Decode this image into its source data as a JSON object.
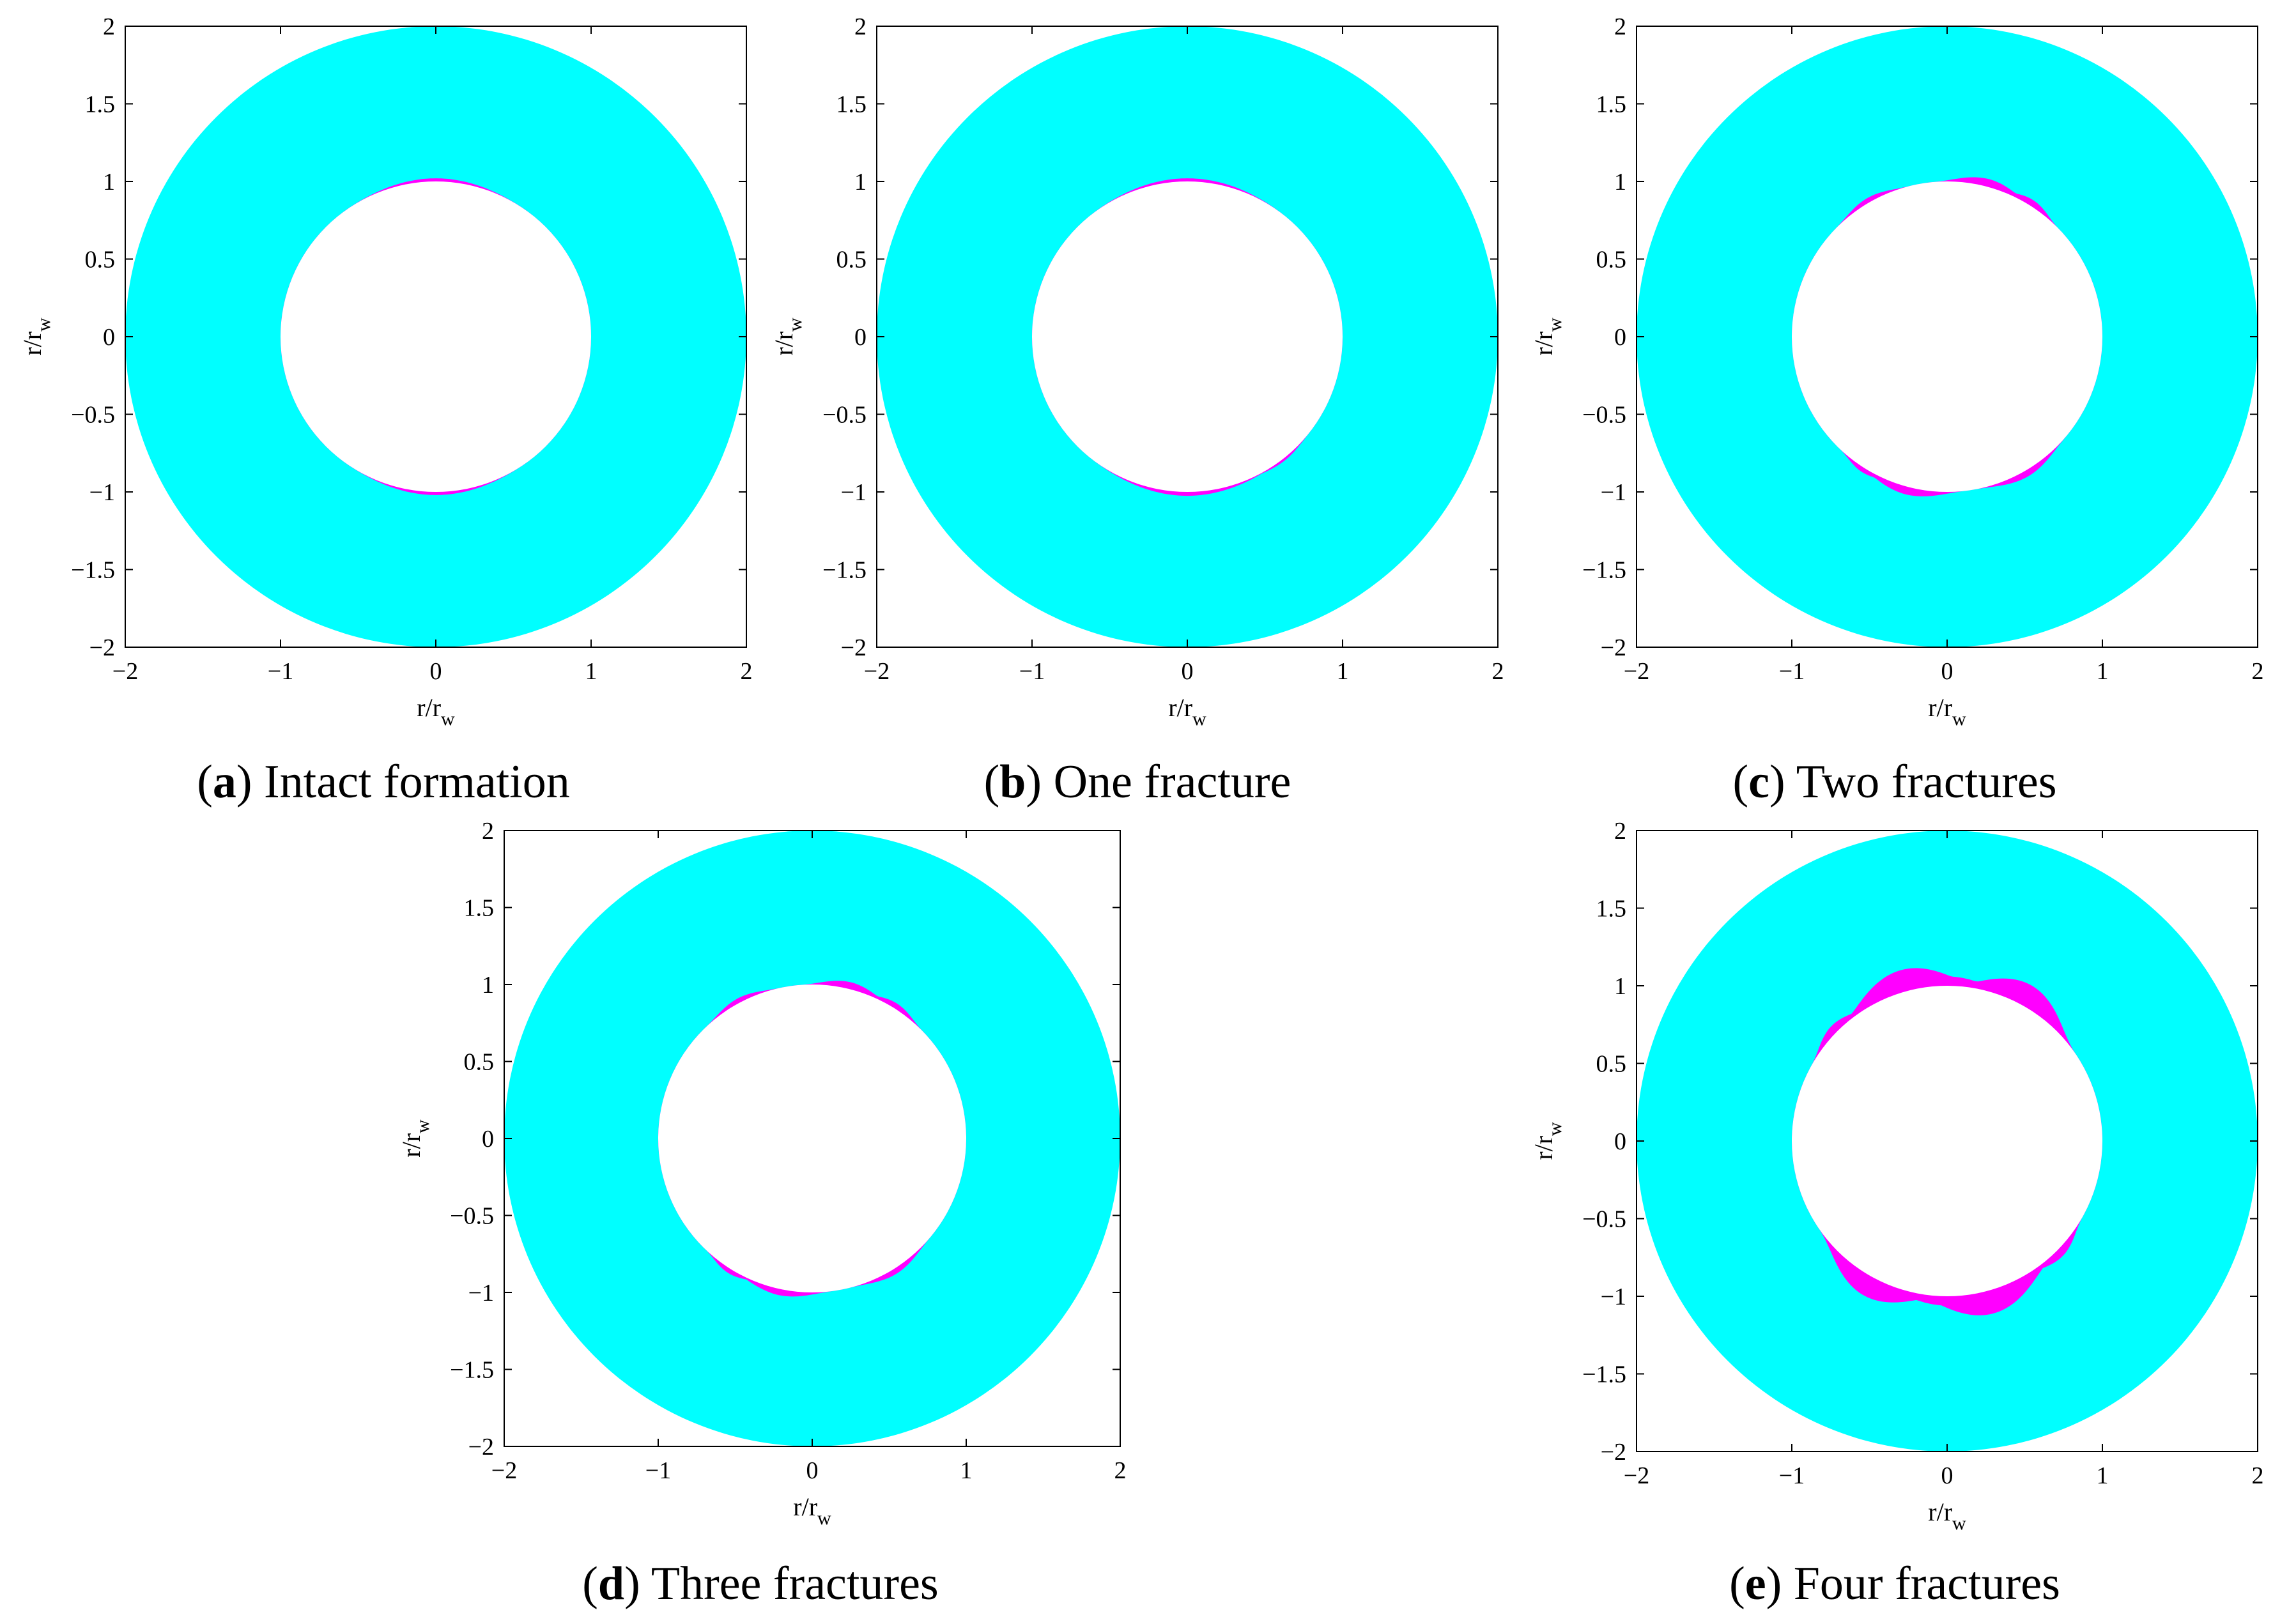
{
  "colors": {
    "annulus": "#00FFFF",
    "damage_zone": "#FF00FF",
    "wellbore": "#FFFFFF",
    "axis": "#000000"
  },
  "chart_data": [
    {
      "type": "area",
      "panel_letter": "a",
      "caption": "Intact formation",
      "xlabel": "r/r",
      "xlabel_sub": "w",
      "ylabel": "r/r",
      "ylabel_sub": "w",
      "xlim": [
        -2,
        2
      ],
      "ylim": [
        -2,
        2
      ],
      "xticks": [
        -2,
        -1,
        0,
        1,
        2
      ],
      "yticks": [
        2,
        1.5,
        1,
        0.5,
        0,
        -0.5,
        -1,
        -1.5,
        -2
      ],
      "outer_radius": 2,
      "wellbore_radius": 1,
      "damage_lobes": [
        {
          "angle_deg": 90,
          "extra_radius": 0.02,
          "width_deg": 34
        },
        {
          "angle_deg": 270,
          "extra_radius": 0.02,
          "width_deg": 34
        }
      ]
    },
    {
      "type": "area",
      "panel_letter": "b",
      "caption": "One fracture",
      "xlabel": "r/r",
      "xlabel_sub": "w",
      "ylabel": "r/r",
      "ylabel_sub": "w",
      "xlim": [
        -2,
        2
      ],
      "ylim": [
        -2,
        2
      ],
      "xticks": [
        -2,
        -1,
        0,
        1,
        2
      ],
      "yticks": [
        2,
        1.5,
        1,
        0.5,
        0,
        -0.5,
        -1,
        -1.5,
        -2
      ],
      "outer_radius": 2,
      "wellbore_radius": 1,
      "damage_lobes": [
        {
          "angle_deg": 90,
          "extra_radius": 0.02,
          "width_deg": 38
        },
        {
          "angle_deg": 270,
          "extra_radius": 0.025,
          "width_deg": 38
        },
        {
          "angle_deg": 308,
          "extra_radius": 0.015,
          "width_deg": 14
        }
      ]
    },
    {
      "type": "area",
      "panel_letter": "c",
      "caption": "Two fractures",
      "xlabel": "r/r",
      "xlabel_sub": "w",
      "ylabel": "r/r",
      "ylabel_sub": "w",
      "xlim": [
        -2,
        2
      ],
      "ylim": [
        -2,
        2
      ],
      "xticks": [
        -2,
        -1,
        0,
        1,
        2
      ],
      "yticks": [
        2,
        1.5,
        1,
        0.5,
        0,
        -0.5,
        -1,
        -1.5,
        -2
      ],
      "outer_radius": 2,
      "wellbore_radius": 1,
      "damage_lobes": [
        {
          "angle_deg": 75,
          "extra_radius": 0.05,
          "width_deg": 20
        },
        {
          "angle_deg": 58,
          "extra_radius": 0.04,
          "width_deg": 14
        },
        {
          "angle_deg": 120,
          "extra_radius": 0.03,
          "width_deg": 16
        },
        {
          "angle_deg": 255,
          "extra_radius": 0.05,
          "width_deg": 22
        },
        {
          "angle_deg": 238,
          "extra_radius": 0.03,
          "width_deg": 12
        },
        {
          "angle_deg": 300,
          "extra_radius": 0.04,
          "width_deg": 20
        }
      ]
    },
    {
      "type": "area",
      "panel_letter": "d",
      "caption": "Three fractures",
      "xlabel": "r/r",
      "xlabel_sub": "w",
      "ylabel": "r/r",
      "ylabel_sub": "w",
      "xlim": [
        -2,
        2
      ],
      "ylim": [
        -2,
        2
      ],
      "xticks": [
        -2,
        -1,
        0,
        1,
        2
      ],
      "yticks": [
        2,
        1.5,
        1,
        0.5,
        0,
        -0.5,
        -1,
        -1.5,
        -2
      ],
      "outer_radius": 2,
      "wellbore_radius": 1,
      "damage_lobes": [
        {
          "angle_deg": 76,
          "extra_radius": 0.045,
          "width_deg": 18
        },
        {
          "angle_deg": 58,
          "extra_radius": 0.035,
          "width_deg": 14
        },
        {
          "angle_deg": 118,
          "extra_radius": 0.03,
          "width_deg": 16
        },
        {
          "angle_deg": 258,
          "extra_radius": 0.04,
          "width_deg": 20
        },
        {
          "angle_deg": 238,
          "extra_radius": 0.03,
          "width_deg": 12
        },
        {
          "angle_deg": 302,
          "extra_radius": 0.035,
          "width_deg": 18
        }
      ]
    },
    {
      "type": "area",
      "panel_letter": "e",
      "caption": "Four fractures",
      "xlabel": "r/r",
      "xlabel_sub": "w",
      "ylabel": "r/r",
      "ylabel_sub": "w",
      "xlim": [
        -2,
        2
      ],
      "ylim": [
        -2,
        2
      ],
      "xticks": [
        -2,
        -1,
        0,
        1,
        2
      ],
      "yticks": [
        2,
        1.5,
        1,
        0.5,
        0,
        -0.5,
        -1,
        -1.5,
        -2
      ],
      "outer_radius": 2,
      "wellbore_radius": 1,
      "damage_lobes": [
        {
          "angle_deg": 105,
          "extra_radius": 0.14,
          "width_deg": 30
        },
        {
          "angle_deg": 62,
          "extra_radius": 0.14,
          "width_deg": 28
        },
        {
          "angle_deg": 90,
          "extra_radius": 0.06,
          "width_deg": 30
        },
        {
          "angle_deg": 135,
          "extra_radius": 0.05,
          "width_deg": 16
        },
        {
          "angle_deg": 285,
          "extra_radius": 0.15,
          "width_deg": 30
        },
        {
          "angle_deg": 242,
          "extra_radius": 0.13,
          "width_deg": 28
        },
        {
          "angle_deg": 270,
          "extra_radius": 0.06,
          "width_deg": 30
        },
        {
          "angle_deg": 315,
          "extra_radius": 0.05,
          "width_deg": 16
        }
      ]
    }
  ]
}
